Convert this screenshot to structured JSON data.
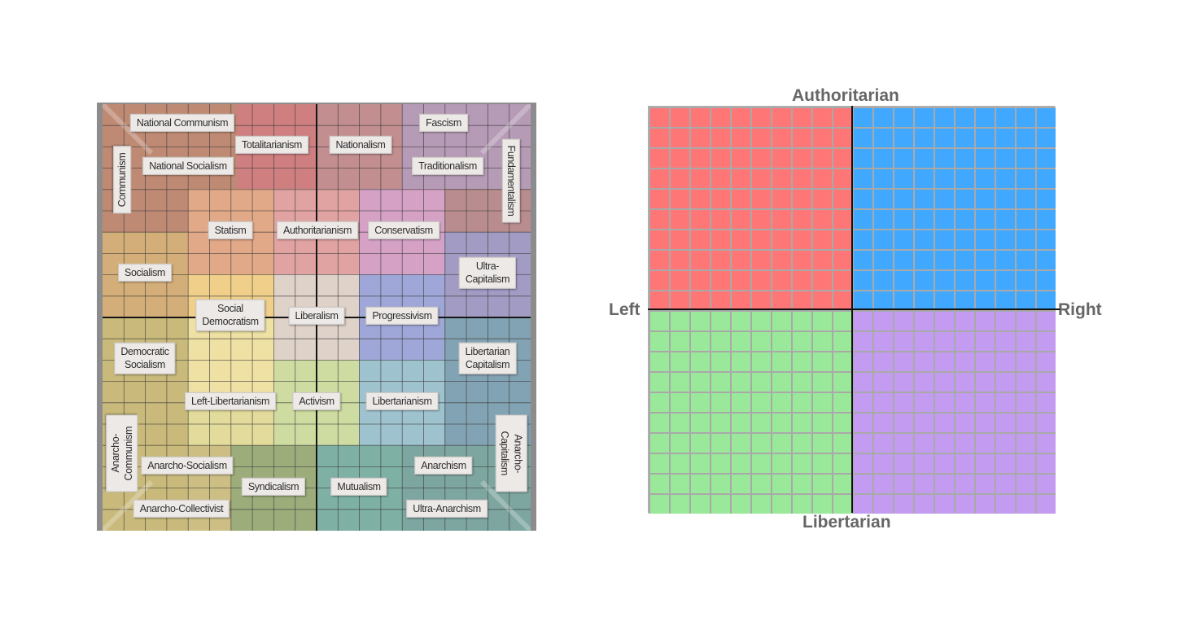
{
  "left_compass": {
    "labels": [
      {
        "text": "National Communism",
        "name": "label-national-communism"
      },
      {
        "text": "Totalitarianism",
        "name": "label-totalitarianism"
      },
      {
        "text": "Nationalism",
        "name": "label-nationalism"
      },
      {
        "text": "Fascism",
        "name": "label-fascism"
      },
      {
        "text": "National Socialism",
        "name": "label-national-socialism"
      },
      {
        "text": "Traditionalism",
        "name": "label-traditionalism"
      },
      {
        "text": "Communism",
        "name": "label-communism"
      },
      {
        "text": "Fundamentalism",
        "name": "label-fundamentalism"
      },
      {
        "text": "Statism",
        "name": "label-statism"
      },
      {
        "text": "Authoritarianism",
        "name": "label-authoritarianism"
      },
      {
        "text": "Conservatism",
        "name": "label-conservatism"
      },
      {
        "text": "Socialism",
        "name": "label-socialism"
      },
      {
        "text": "Ultra-Capitalism",
        "name": "label-ultra-capitalism"
      },
      {
        "text": "Social\nDemocratism",
        "name": "label-social-democratism"
      },
      {
        "text": "Liberalism",
        "name": "label-liberalism"
      },
      {
        "text": "Progressivism",
        "name": "label-progressivism"
      },
      {
        "text": "Democratic\nSocialism",
        "name": "label-democratic-socialism"
      },
      {
        "text": "Libertarian\nCapitalism",
        "name": "label-libertarian-capitalism"
      },
      {
        "text": "Left-Libertarianism",
        "name": "label-left-libertarianism"
      },
      {
        "text": "Activism",
        "name": "label-activism"
      },
      {
        "text": "Libertarianism",
        "name": "label-libertarianism"
      },
      {
        "text": "Anarcho-Communism",
        "name": "label-anarcho-communism"
      },
      {
        "text": "Anarcho-Capitalism",
        "name": "label-anarcho-capitalism"
      },
      {
        "text": "Anarcho-Socialism",
        "name": "label-anarcho-socialism"
      },
      {
        "text": "Anarchism",
        "name": "label-anarchism"
      },
      {
        "text": "Syndicalism",
        "name": "label-syndicalism"
      },
      {
        "text": "Mutualism",
        "name": "label-mutualism"
      },
      {
        "text": "Anarcho-Collectivist",
        "name": "label-anarcho-collectivist"
      },
      {
        "text": "Ultra-Anarchism",
        "name": "label-ultra-anarchism"
      }
    ],
    "colors": {
      "top_left": "#c98b78",
      "top_right": "#b98fa6",
      "bottom_left": "#cbbf82",
      "bottom_right": "#86a8a8",
      "center": "#ddd6d0"
    }
  },
  "right_compass": {
    "axis_labels": {
      "top": "Authoritarian",
      "bottom": "Libertarian",
      "left": "Left",
      "right": "Right"
    },
    "quadrant_colors": {
      "top_left": "#ff7676",
      "top_right": "#40a9ff",
      "bottom_left": "#9ae89a",
      "bottom_right": "#c39bf0"
    },
    "grid_divisions": 10
  }
}
